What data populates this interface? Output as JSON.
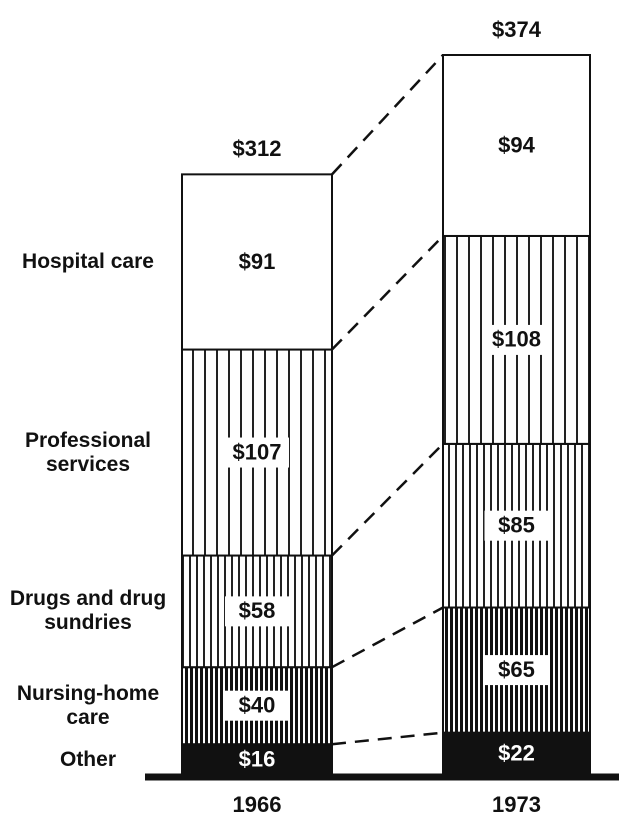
{
  "chart_data": {
    "type": "stacked_bar",
    "categories": [
      "1966",
      "1973"
    ],
    "series": [
      {
        "name": "Other",
        "values": [
          16,
          22
        ],
        "value_labels": [
          "$16",
          "$22"
        ]
      },
      {
        "name": "Nursing-home care",
        "values": [
          40,
          65
        ],
        "value_labels": [
          "$40",
          "$65"
        ]
      },
      {
        "name": "Drugs and drug sundries",
        "values": [
          58,
          85
        ],
        "value_labels": [
          "$58",
          "$85"
        ]
      },
      {
        "name": "Professional services",
        "values": [
          107,
          108
        ],
        "value_labels": [
          "$107",
          "$108"
        ]
      },
      {
        "name": "Hospital care",
        "values": [
          91,
          94
        ],
        "value_labels": [
          "$91",
          "$94"
        ]
      }
    ],
    "totals": [
      312,
      374
    ],
    "total_labels": [
      "$312",
      "$374"
    ]
  }
}
